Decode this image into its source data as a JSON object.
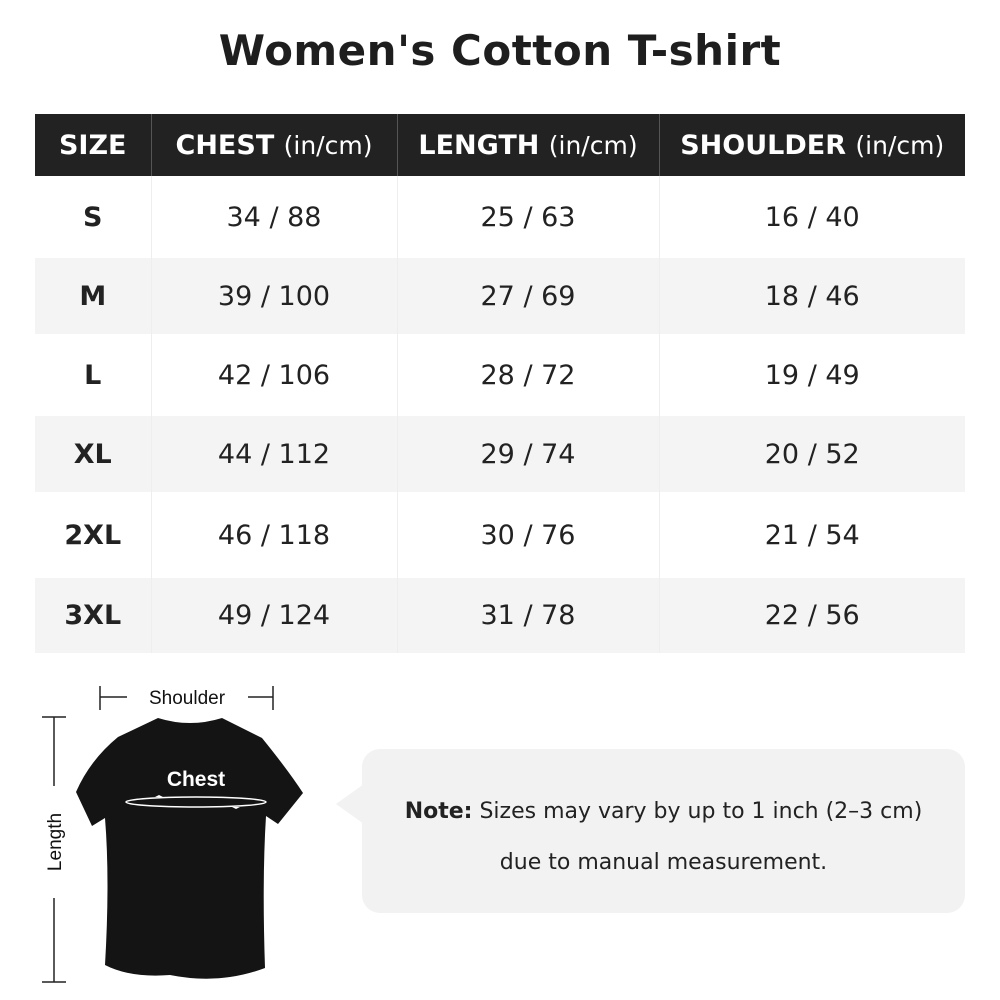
{
  "title": "Women's Cotton T-shirt",
  "table": {
    "headers": [
      {
        "label": "SIZE",
        "unit": ""
      },
      {
        "label": "CHEST",
        "unit": "(in/cm)"
      },
      {
        "label": "LENGTH",
        "unit": "(in/cm)"
      },
      {
        "label": "SHOULDER",
        "unit": "(in/cm)"
      }
    ],
    "rows": [
      [
        "S",
        "34 / 88",
        "25 / 63",
        "16 / 40"
      ],
      [
        "M",
        "39 / 100",
        "27 / 69",
        "18 / 46"
      ],
      [
        "L",
        "42 / 106",
        "28 / 72",
        "19 / 49"
      ],
      [
        "XL",
        "44 / 112",
        "29 / 74",
        "20 / 52"
      ],
      [
        "2XL",
        "46 / 118",
        "30 / 76",
        "21 / 54"
      ],
      [
        "3XL",
        "49 / 124",
        "31 / 78",
        "22 / 56"
      ]
    ]
  },
  "diagram": {
    "shoulder": "Shoulder",
    "chest": "Chest",
    "length": "Length"
  },
  "note": {
    "label": "Note:",
    "line1": " Sizes may vary by up to 1 inch (2–3 cm)",
    "line2": "due to manual measurement."
  },
  "colors": {
    "header_bg": "#222222",
    "stripe": "#f4f4f4",
    "note_bg": "#f2f2f2"
  }
}
